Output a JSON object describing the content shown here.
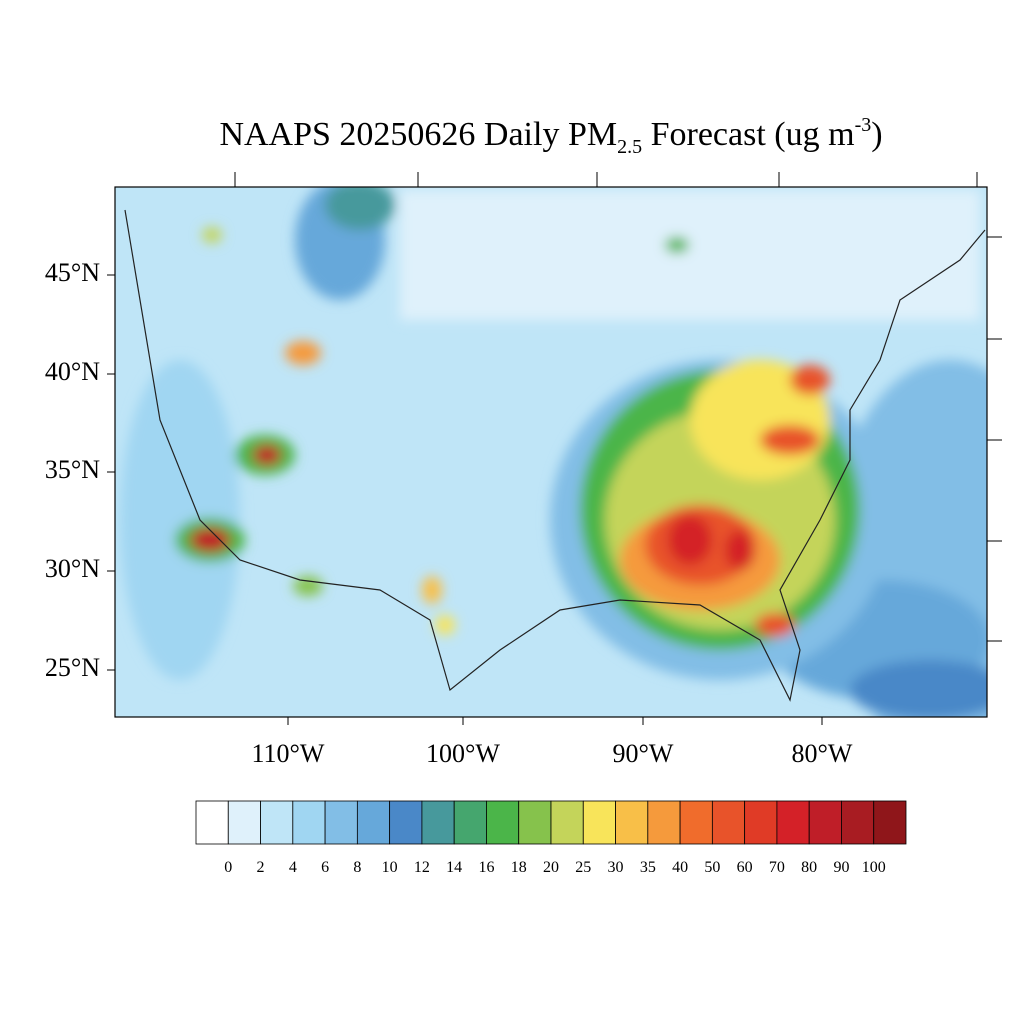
{
  "title": {
    "main": "NAAPS 20250626 Daily PM",
    "sub": "2.5",
    "rest": " Forecast (ug m",
    "sup": "-3",
    "end": ")"
  },
  "lat_labels": [
    "45°N",
    "40°N",
    "35°N",
    "30°N",
    "25°N"
  ],
  "lon_labels": [
    "110°W",
    "100°W",
    "90°W",
    "80°W"
  ],
  "colorbar": {
    "labels": [
      "0",
      "2",
      "4",
      "6",
      "8",
      "10",
      "12",
      "14",
      "16",
      "18",
      "20",
      "25",
      "30",
      "35",
      "40",
      "50",
      "60",
      "70",
      "80",
      "90",
      "100"
    ],
    "colors": [
      "#ffffff",
      "#dff1fb",
      "#bfe5f7",
      "#a0d6f2",
      "#82bee6",
      "#66a8da",
      "#4a88c8",
      "#47999c",
      "#45a66e",
      "#4bb549",
      "#86c24c",
      "#c4d45a",
      "#f8e45a",
      "#f8bf48",
      "#f59a3c",
      "#f06c2c",
      "#e8532a",
      "#e03b26",
      "#d42128",
      "#bf1e28",
      "#a81c22",
      "#8f161a"
    ]
  }
}
